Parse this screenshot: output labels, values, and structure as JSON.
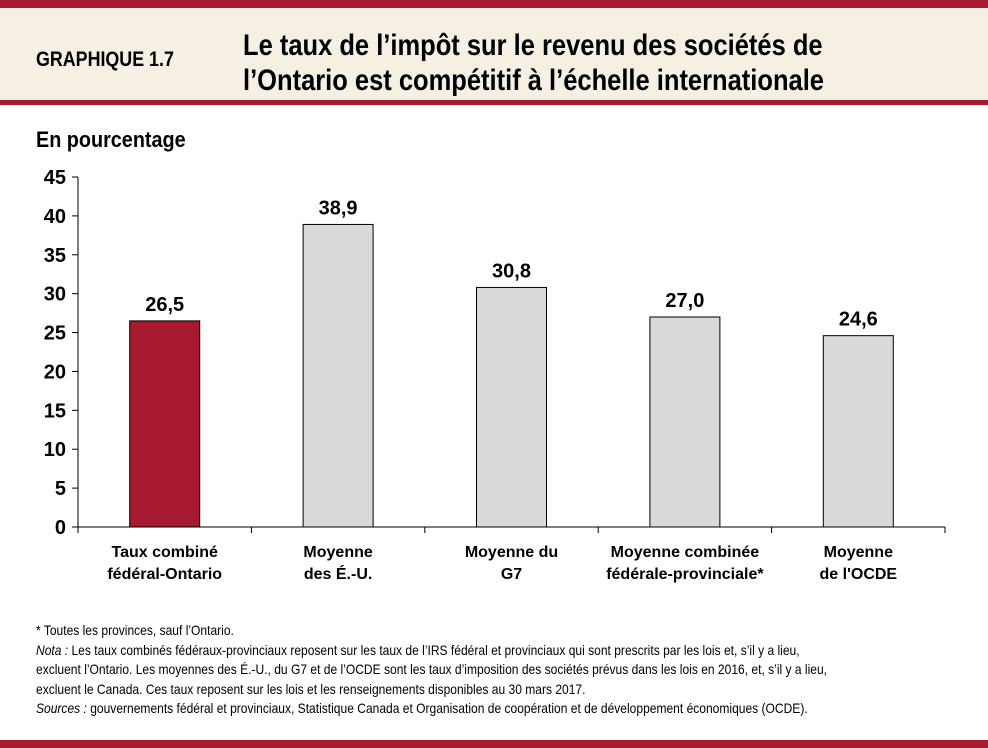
{
  "header": {
    "figure_number": "GRAPHIQUE 1.7",
    "title_line1": "Le taux de l’impôt sur le revenu des sociétés de",
    "title_line2": "l’Ontario est compétitif à l’échelle internationale"
  },
  "chart_data": {
    "type": "bar",
    "title": "Le taux de l’impôt sur le revenu des sociétés de l’Ontario est compétitif à l’échelle internationale",
    "ylabel": "En pourcentage",
    "ylim": [
      0,
      45
    ],
    "yticks": [
      0,
      5,
      10,
      15,
      20,
      25,
      30,
      35,
      40,
      45
    ],
    "grid": false,
    "categories": [
      [
        "Taux combiné",
        "fédéral-Ontario"
      ],
      [
        "Moyenne",
        "des É.-U."
      ],
      [
        "Moyenne du",
        "G7"
      ],
      [
        "Moyenne combinée",
        "fédérale-provinciale*"
      ],
      [
        "Moyenne",
        "de l'OCDE"
      ]
    ],
    "values": [
      26.5,
      38.9,
      30.8,
      27.0,
      24.6
    ],
    "data_labels": [
      "26,5",
      "38,9",
      "30,8",
      "27,0",
      "24,6"
    ],
    "colors": [
      "#a6192e",
      "#d9d9d9",
      "#d9d9d9",
      "#d9d9d9",
      "#d9d9d9"
    ]
  },
  "notes": {
    "footnote": "* Toutes les provinces, sauf l’Ontario.",
    "nota_label": "Nota :",
    "nota_line1": " Les taux combinés fédéraux-provinciaux reposent sur les taux de l’IRS fédéral et provinciaux qui sont prescrits par les lois et, s’il y a lieu,",
    "nota_line2": "excluent l’Ontario. Les moyennes des É.-U., du G7 et de l’OCDE sont les taux d’imposition des sociétés prévus dans les lois en 2016, et, s’il y a lieu,",
    "nota_line3": "excluent le Canada. Ces taux reposent sur les lois et les renseignements disponibles au 30 mars 2017.",
    "sources_label": "Sources :",
    "sources_text": " gouvernements fédéral et provinciaux, Statistique  Canada et Organisation de coopération et de développement économiques (OCDE)."
  }
}
